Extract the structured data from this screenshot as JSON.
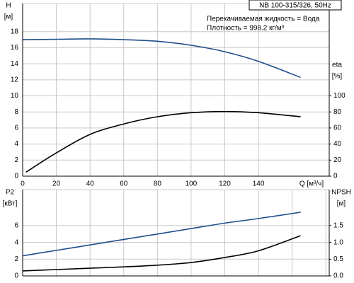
{
  "header": {
    "title": "NB 100-315/326, 50Hz",
    "notes": [
      "Перекачиваемая жидкость = Вода",
      "Плотность = 998.2 кг/м³"
    ]
  },
  "chart_data": [
    {
      "type": "line",
      "x_label": "Q [м³/ч]",
      "y_label": [
        "H",
        "[м]"
      ],
      "y2_label": [
        "eta",
        "[%]"
      ],
      "x": [
        0,
        2,
        20,
        40,
        60,
        80,
        100,
        120,
        140,
        165
      ],
      "xlim": [
        0,
        182
      ],
      "xticks": [
        0,
        20,
        40,
        60,
        80,
        100,
        120,
        140
      ],
      "xtick_labels": true,
      "ylim": [
        0,
        21.5
      ],
      "yticks": [
        0,
        2,
        4,
        6,
        8,
        10,
        12,
        14,
        16,
        18
      ],
      "y2lim": [
        0,
        215
      ],
      "y2ticks": [
        0,
        20,
        40,
        60,
        80,
        100
      ],
      "grid": true,
      "series": [
        {
          "name": "H",
          "color": "#1f4e8c",
          "values": [
            17.0,
            17.0,
            17.05,
            17.1,
            17.0,
            16.8,
            16.3,
            15.5,
            14.3,
            12.3
          ]
        },
        {
          "name": "eta",
          "color": "#000000",
          "axis": "y2",
          "values": [
            null,
            5,
            29,
            52,
            65,
            74,
            79,
            80.5,
            79,
            74
          ]
        }
      ]
    },
    {
      "type": "line",
      "y_label": [
        "P2",
        "[кВт]"
      ],
      "y2_label": [
        "NPSH",
        "[м]"
      ],
      "x": [
        0,
        20,
        40,
        60,
        80,
        100,
        120,
        140,
        165
      ],
      "xlim": [
        0,
        182
      ],
      "xticks": [
        0,
        20,
        40,
        60,
        80,
        100,
        120,
        140,
        160,
        180
      ],
      "xtick_labels": false,
      "ylim": [
        0,
        10.3
      ],
      "yticks": [
        0,
        2,
        4,
        6
      ],
      "y2lim": [
        0,
        2.575
      ],
      "y2ticks": [
        {
          "value": 0,
          "label": "0.0"
        },
        0.5,
        {
          "value": 1,
          "label": "1.0"
        },
        1.5
      ],
      "grid": true,
      "series": [
        {
          "name": "P2",
          "color": "#1f4e8c",
          "values": [
            2.4,
            3.05,
            3.7,
            4.35,
            5.0,
            5.65,
            6.3,
            6.85,
            7.6
          ]
        },
        {
          "name": "NPSH",
          "color": "#000000",
          "axis": "y2",
          "values": [
            0.15,
            0.19,
            0.23,
            0.27,
            0.32,
            0.4,
            0.55,
            0.75,
            1.2
          ]
        }
      ]
    }
  ]
}
